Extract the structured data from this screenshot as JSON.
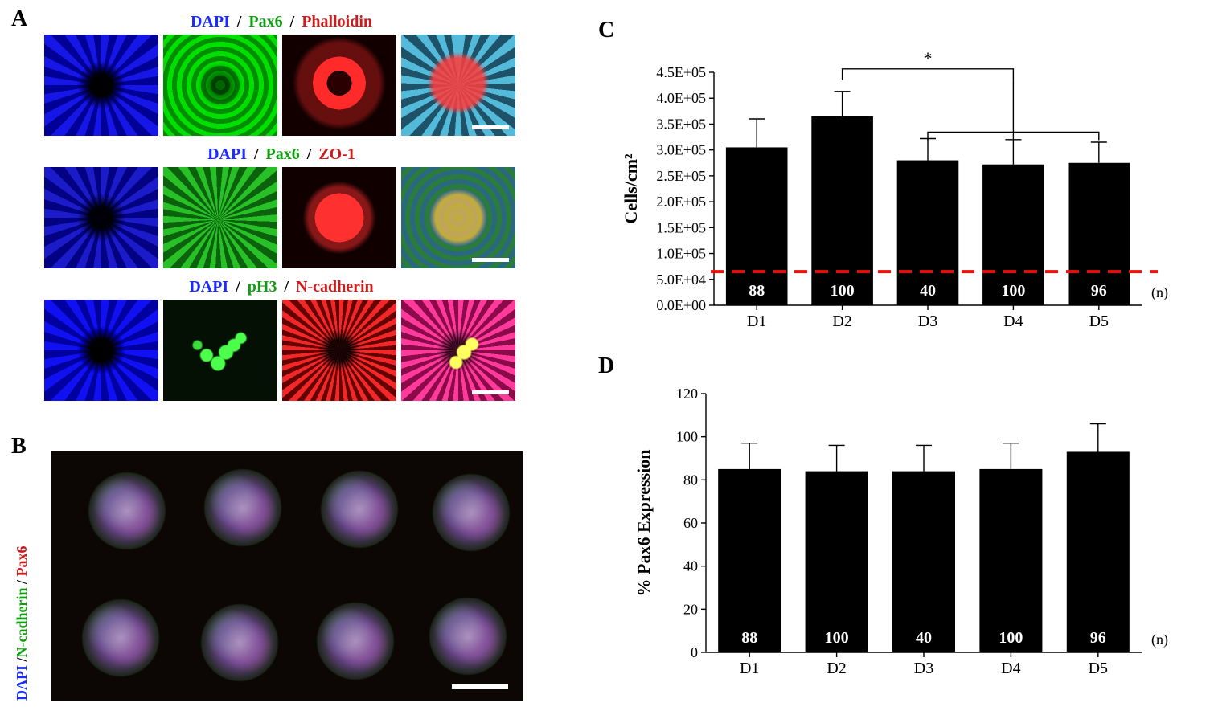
{
  "panel_labels": {
    "A": "A",
    "B": "B",
    "C": "C",
    "D": "D"
  },
  "panelA": {
    "rows": [
      {
        "stains": [
          {
            "text": "DAPI",
            "color": "#1a2bff"
          },
          {
            "text": " / ",
            "color": "#000000"
          },
          {
            "text": "Pax6",
            "color": "#0e9e0e"
          },
          {
            "text": " / ",
            "color": "#000000"
          },
          {
            "text": "Phalloidin",
            "color": "#d11a1a"
          }
        ]
      },
      {
        "stains": [
          {
            "text": "DAPI",
            "color": "#1a2bff"
          },
          {
            "text": " / ",
            "color": "#000000"
          },
          {
            "text": "Pax6",
            "color": "#0e9e0e"
          },
          {
            "text": " / ",
            "color": "#000000"
          },
          {
            "text": "ZO-1",
            "color": "#d11a1a"
          }
        ]
      },
      {
        "stains": [
          {
            "text": "DAPI",
            "color": "#1a2bff"
          },
          {
            "text": " / ",
            "color": "#000000"
          },
          {
            "text": "pH3",
            "color": "#0e9e0e"
          },
          {
            "text": " / ",
            "color": "#000000"
          },
          {
            "text": "N-cadherin",
            "color": "#d11a1a"
          }
        ]
      }
    ],
    "scalebar_color": "#ffffff"
  },
  "panelB": {
    "vlabel": [
      {
        "text": "DAPI ",
        "color": "#1a2bff"
      },
      {
        "text": "/",
        "color": "#000000"
      },
      {
        "text": "N-cadherin ",
        "color": "#0e9e0e"
      },
      {
        "text": "/ ",
        "color": "#000000"
      },
      {
        "text": "Pax6",
        "color": "#d11a1a"
      }
    ],
    "colony_positions": [
      [
        46,
        26
      ],
      [
        190,
        22
      ],
      [
        335,
        24
      ],
      [
        474,
        28
      ],
      [
        38,
        184
      ],
      [
        186,
        190
      ],
      [
        330,
        188
      ],
      [
        470,
        182
      ]
    ],
    "scalebar_color": "#ffffff"
  },
  "chartC": {
    "type": "bar",
    "ylabel": "Cells/cm²",
    "yticks": [
      "0.0E+00",
      "5.0E+04",
      "1.0E+05",
      "1.5E+05",
      "2.0E+05",
      "2.5E+05",
      "3.0E+05",
      "3.5E+05",
      "4.0E+05",
      "4.5E+05"
    ],
    "ytick_values": [
      0,
      50000,
      100000,
      150000,
      200000,
      250000,
      300000,
      350000,
      400000,
      450000
    ],
    "ylim": [
      0,
      450000
    ],
    "categories": [
      "D1",
      "D2",
      "D3",
      "D4",
      "D5"
    ],
    "values": [
      305000,
      365000,
      280000,
      272000,
      275000
    ],
    "errors": [
      55000,
      48000,
      42000,
      48000,
      40000
    ],
    "n": [
      88,
      100,
      40,
      100,
      96
    ],
    "n_suffix": "(n)",
    "seed_line_y": 65000,
    "seed_line_color": "#e81010",
    "sig_marker": "*",
    "bar_color": "#000000",
    "background_color": "#ffffff",
    "label_fontsize": 22,
    "tick_fontsize": 18
  },
  "chartD": {
    "type": "bar",
    "ylabel": "% Pax6 Expression",
    "yticks": [
      "0",
      "20",
      "40",
      "60",
      "80",
      "100",
      "120"
    ],
    "ytick_values": [
      0,
      20,
      40,
      60,
      80,
      100,
      120
    ],
    "ylim": [
      0,
      120
    ],
    "categories": [
      "D1",
      "D2",
      "D3",
      "D4",
      "D5"
    ],
    "values": [
      85,
      84,
      84,
      85,
      93
    ],
    "errors": [
      12,
      12,
      12,
      12,
      13
    ],
    "n": [
      88,
      100,
      40,
      100,
      96
    ],
    "n_suffix": "(n)",
    "bar_color": "#000000",
    "background_color": "#ffffff",
    "label_fontsize": 22,
    "tick_fontsize": 18
  }
}
